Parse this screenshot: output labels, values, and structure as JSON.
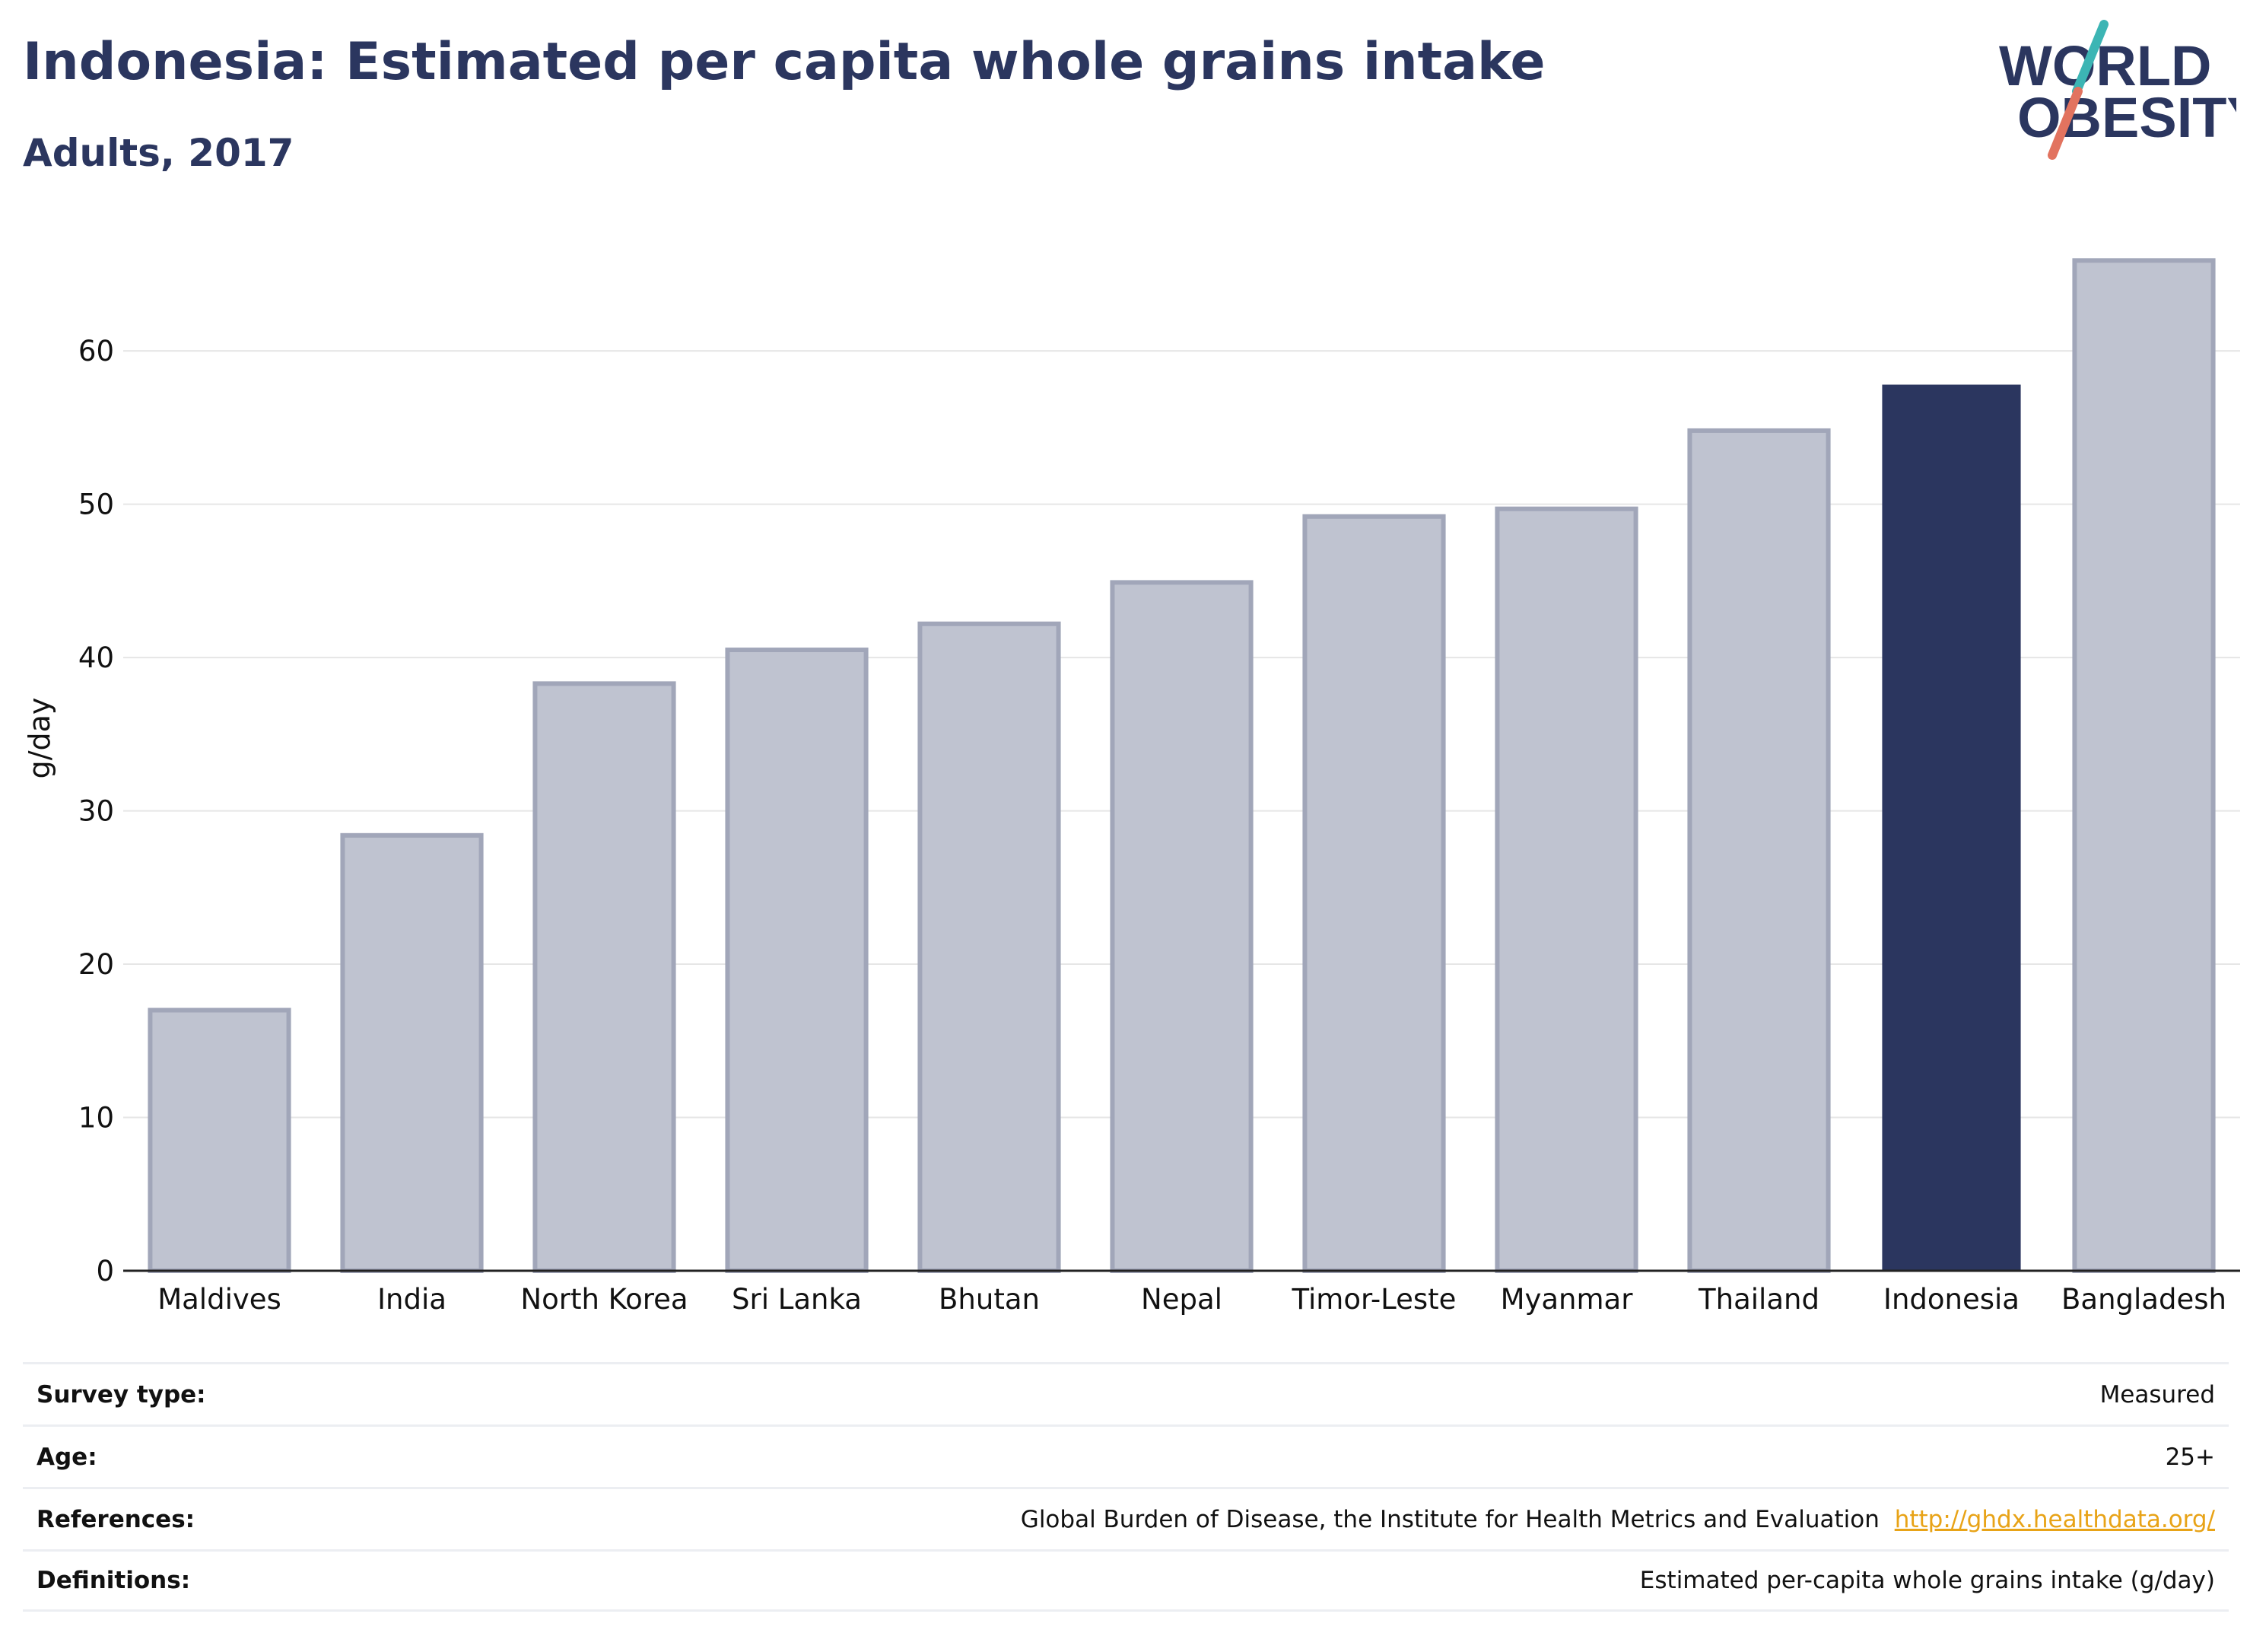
{
  "header": {
    "title": "Indonesia: Estimated per capita whole grains intake",
    "subtitle": "Adults, 2017"
  },
  "logo": {
    "line1": "WORLD",
    "line2": "OBESITY"
  },
  "colors": {
    "highlight": "#2b365f",
    "bar_fill": "#bfc3d0",
    "bar_border": "#a1a6b9",
    "grid": "#e6e6e6",
    "logo_teal": "#3cb5b4",
    "logo_coral": "#e2735f",
    "link": "#e8a317"
  },
  "chart_data": {
    "type": "bar",
    "title": "Indonesia: Estimated per capita whole grains intake",
    "subtitle": "Adults, 2017",
    "ylabel": "g/day",
    "xlabel": "",
    "ylim": [
      0,
      68
    ],
    "yticks": [
      0,
      10,
      20,
      30,
      40,
      50,
      60
    ],
    "categories": [
      "Maldives",
      "India",
      "North Korea",
      "Sri Lanka",
      "Bhutan",
      "Nepal",
      "Timor-Leste",
      "Myanmar",
      "Thailand",
      "Indonesia",
      "Bangladesh"
    ],
    "values": [
      17.0,
      28.4,
      38.3,
      40.5,
      42.2,
      44.9,
      49.2,
      49.7,
      54.8,
      57.8,
      65.9
    ],
    "highlight": "Indonesia",
    "grid": true
  },
  "info": [
    {
      "key": "Survey type:",
      "value": "Measured"
    },
    {
      "key": "Age:",
      "value": "25+"
    },
    {
      "key": "References:",
      "value": "Global Burden of Disease, the Institute for Health Metrics and Evaluation",
      "link": "http://ghdx.healthdata.org/"
    },
    {
      "key": "Definitions:",
      "value": "Estimated per-capita whole grains intake (g/day)"
    }
  ]
}
